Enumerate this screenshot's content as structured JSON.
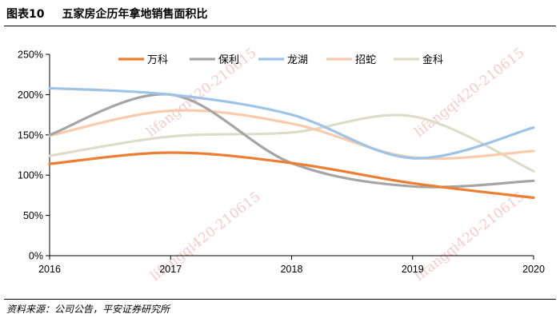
{
  "figure": {
    "number": "图表10",
    "title": "五家房企历年拿地销售面积比",
    "source": "资料来源：公司公告，平安证券研究所",
    "watermark": "lifangqi420-210615"
  },
  "chart_data": {
    "type": "line",
    "title": "五家房企历年拿地销售面积比",
    "xlabel": "",
    "ylabel": "",
    "categories": [
      "2016",
      "2017",
      "2018",
      "2019",
      "2020"
    ],
    "ylim": [
      0,
      250
    ],
    "yticks": [
      0,
      50,
      100,
      150,
      200,
      250
    ],
    "ytick_labels": [
      "0%",
      "50%",
      "100%",
      "150%",
      "200%",
      "250%"
    ],
    "grid": false,
    "legend_position": "top",
    "series": [
      {
        "name": "万科",
        "color": "#ED7D31",
        "values": [
          114,
          128,
          115,
          90,
          72
        ]
      },
      {
        "name": "保利",
        "color": "#A5A5A5",
        "values": [
          150,
          200,
          115,
          86,
          93
        ]
      },
      {
        "name": "龙湖",
        "color": "#9DC3E6",
        "values": [
          208,
          200,
          175,
          121,
          159
        ]
      },
      {
        "name": "招蛇",
        "color": "#F8CBAD",
        "values": [
          149,
          180,
          164,
          122,
          130
        ]
      },
      {
        "name": "金科",
        "color": "#DDDCC8",
        "values": [
          124,
          148,
          153,
          173,
          105
        ]
      }
    ]
  }
}
